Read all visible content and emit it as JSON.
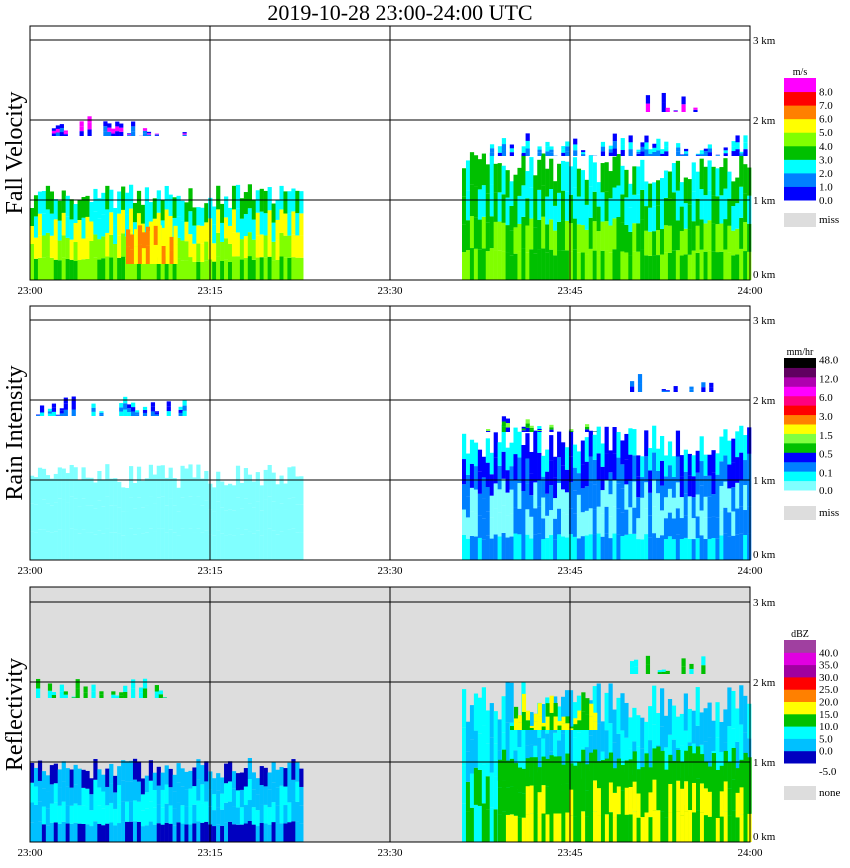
{
  "title": "2019-10-28   23:00-24:00 UTC",
  "chart_data": [
    {
      "type": "heatmap",
      "title": "Fall Velocity",
      "ylabel": "Fall Velocity",
      "unit": "m/s",
      "xticks": [
        "23:00",
        "23:15",
        "23:30",
        "23:45",
        "24:00"
      ],
      "yticks": [
        "0 km",
        "1 km",
        "2 km",
        "3 km"
      ],
      "xlim_min": [
        0,
        60
      ],
      "ylim_km": [
        0,
        3.17
      ],
      "legend_labels": [
        "0.0",
        "1.0",
        "2.0",
        "3.0",
        "4.0",
        "5.0",
        "6.0",
        "7.0",
        "8.0"
      ],
      "legend_colors": [
        "#0000ff",
        "#0080ff",
        "#00ffff",
        "#00c000",
        "#80ff00",
        "#ffff00",
        "#ff8000",
        "#ff0000",
        "#ff00ff"
      ],
      "missing_label": "miss",
      "background": "#ffffff",
      "regions": [
        {
          "t": [
            0,
            22.5
          ],
          "h": [
            0,
            1.2
          ],
          "c": [
            3,
            4,
            5,
            2
          ]
        },
        {
          "t": [
            8,
            12
          ],
          "h": [
            0.2,
            0.7
          ],
          "c": [
            6,
            5
          ]
        },
        {
          "t": [
            0.5,
            13
          ],
          "h": [
            1.8,
            2.05
          ],
          "c": [
            0,
            1,
            8
          ]
        },
        {
          "t": [
            36,
            60
          ],
          "h": [
            0,
            1.6
          ],
          "c": [
            3,
            4,
            3,
            2
          ]
        },
        {
          "t": [
            38,
            60
          ],
          "h": [
            1.55,
            1.85
          ],
          "c": [
            0,
            1,
            2
          ]
        },
        {
          "t": [
            50,
            57
          ],
          "h": [
            2.1,
            2.35
          ],
          "c": [
            0,
            8
          ]
        }
      ]
    },
    {
      "type": "heatmap",
      "title": "Rain Intensity",
      "ylabel": "Rain Intensity",
      "unit": "mm/hr",
      "xticks": [
        "23:00",
        "23:15",
        "23:30",
        "23:45",
        "24:00"
      ],
      "yticks": [
        "0 km",
        "1 km",
        "2 km",
        "3 km"
      ],
      "xlim_min": [
        0,
        60
      ],
      "ylim_km": [
        0,
        3.17
      ],
      "legend_labels": [
        "0.0",
        "0.1",
        "0.5",
        "1.5",
        "3.0",
        "6.0",
        "12.0",
        "48.0"
      ],
      "legend_colors": [
        "#80ffff",
        "#00ffff",
        "#0080ff",
        "#0000ff",
        "#00c000",
        "#80ff40",
        "#ffff00",
        "#ff8000",
        "#ff0000",
        "#ff0080",
        "#ff00ff",
        "#b000b0",
        "#600060",
        "#000000"
      ],
      "missing_label": "miss",
      "background": "#ffffff",
      "regions": [
        {
          "t": [
            0,
            22.5
          ],
          "h": [
            0,
            1.2
          ],
          "c": [
            0,
            0,
            0
          ]
        },
        {
          "t": [
            0.5,
            13
          ],
          "h": [
            1.8,
            2.05
          ],
          "c": [
            1,
            2,
            3
          ]
        },
        {
          "t": [
            36,
            60
          ],
          "h": [
            0,
            1.7
          ],
          "c": [
            1,
            2,
            0,
            2,
            3
          ]
        },
        {
          "t": [
            38,
            47
          ],
          "h": [
            1.6,
            1.8
          ],
          "c": [
            3,
            4,
            5
          ]
        },
        {
          "t": [
            50,
            57
          ],
          "h": [
            2.1,
            2.35
          ],
          "c": [
            3,
            2
          ]
        }
      ]
    },
    {
      "type": "heatmap",
      "title": "Reflectivity",
      "ylabel": "Reflectivity",
      "unit": "dBZ",
      "xticks": [
        "23:00",
        "23:15",
        "23:30",
        "23:45",
        "24:00"
      ],
      "yticks": [
        "0 km",
        "1 km",
        "2 km",
        "3 km"
      ],
      "xlim_min": [
        0,
        60
      ],
      "ylim_km": [
        0,
        3.17
      ],
      "legend_labels": [
        "-5.0",
        "0.0",
        "5.0",
        "10.0",
        "15.0",
        "20.0",
        "25.0",
        "30.0",
        "35.0",
        "40.0"
      ],
      "legend_colors": [
        "#0000c0",
        "#00c0ff",
        "#00ffff",
        "#00c000",
        "#ffff00",
        "#ff8000",
        "#ff0000",
        "#a000a0",
        "#e000e0",
        "#a040a0"
      ],
      "missing_label": "none",
      "background": "#dddddd",
      "regions": [
        {
          "t": [
            0,
            22.5
          ],
          "h": [
            0,
            1.05
          ],
          "c": [
            0,
            1,
            2,
            1
          ]
        },
        {
          "t": [
            0.5,
            13
          ],
          "h": [
            1.8,
            2.05
          ],
          "c": [
            2,
            3
          ]
        },
        {
          "t": [
            36,
            60
          ],
          "h": [
            0,
            2.0
          ],
          "c": [
            2,
            3,
            2,
            1
          ]
        },
        {
          "t": [
            39,
            60
          ],
          "h": [
            0,
            1.2
          ],
          "c": [
            3,
            4,
            3
          ]
        },
        {
          "t": [
            40,
            47
          ],
          "h": [
            1.4,
            1.9
          ],
          "c": [
            4,
            3
          ]
        },
        {
          "t": [
            50,
            57
          ],
          "h": [
            2.1,
            2.35
          ],
          "c": [
            2,
            3
          ]
        }
      ]
    }
  ]
}
